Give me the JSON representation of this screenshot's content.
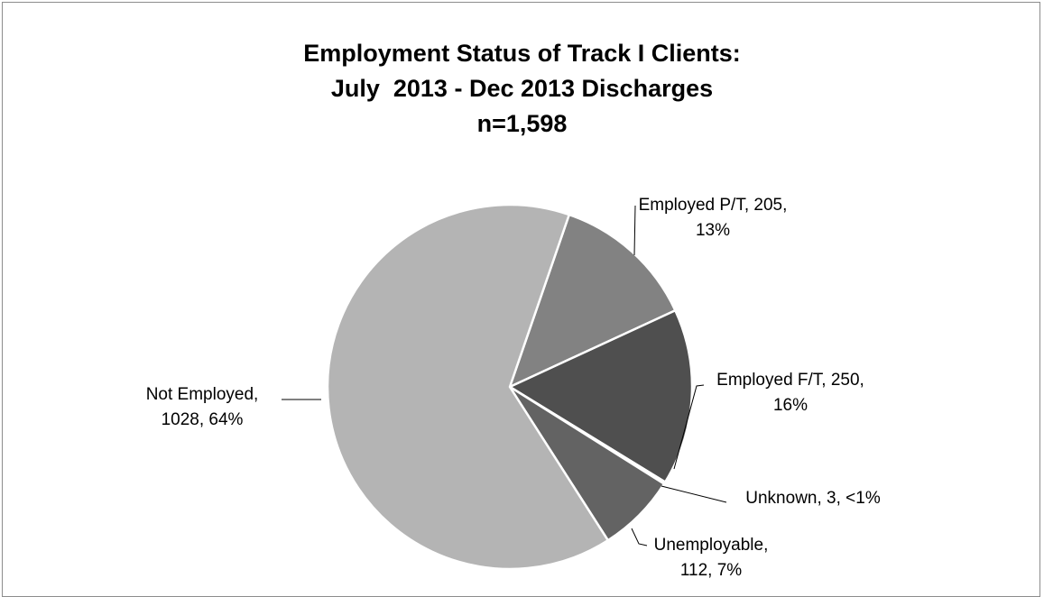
{
  "chart_data": {
    "type": "pie",
    "title": [
      "Employment Status of Track I Clients:",
      "July  2013 - Dec 2013 Discharges",
      "n=1,598"
    ],
    "slices": [
      {
        "category": "Employed P/T",
        "value": 205,
        "percent": "13%",
        "color": "#828282",
        "label_lines": [
          "Employed P/T, 205,",
          "13%"
        ]
      },
      {
        "category": "Employed F/T",
        "value": 250,
        "percent": "16%",
        "color": "#4f4f4f",
        "label_lines": [
          "Employed F/T, 250,",
          "16%"
        ]
      },
      {
        "category": "Unknown",
        "value": 3,
        "percent": "<1%",
        "color": "#aaaaaa",
        "label_lines": [
          "Unknown, 3, <1%"
        ]
      },
      {
        "category": "Unemployable",
        "value": 112,
        "percent": "7%",
        "color": "#636363",
        "label_lines": [
          "Unemployable,",
          "112, 7%"
        ]
      },
      {
        "category": "Not Employed",
        "value": 1028,
        "percent": "64%",
        "color": "#b4b4b4",
        "label_lines": [
          "Not Employed,",
          "1028, 64%"
        ]
      }
    ]
  }
}
